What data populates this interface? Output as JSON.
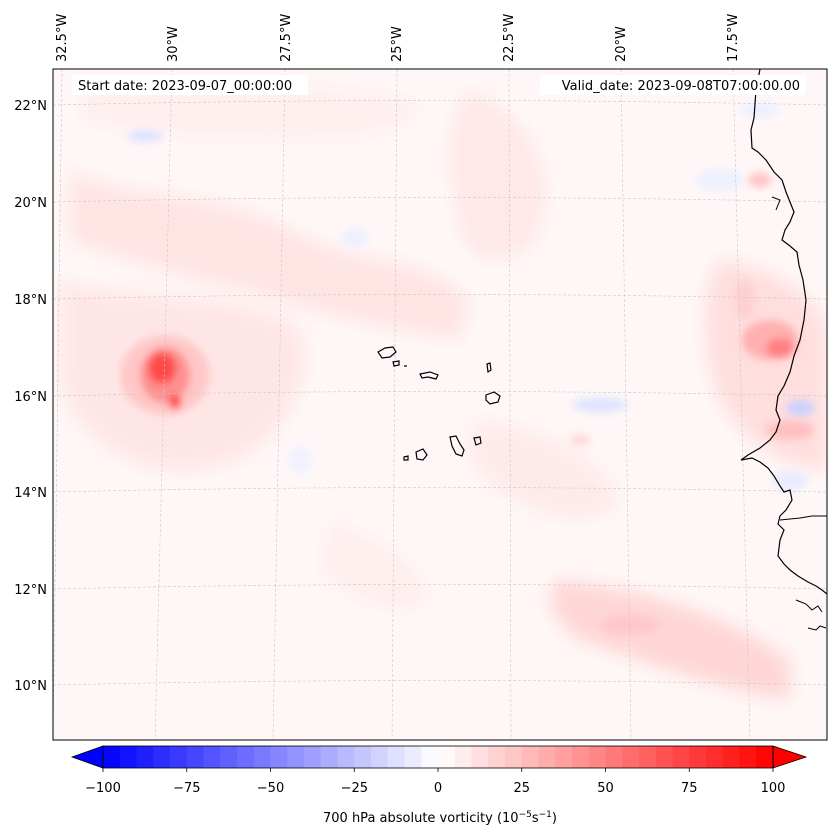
{
  "map": {
    "start_date": "Start date: 2023-09-07_00:00:00",
    "valid_date": "Valid_date: 2023-09-08T07:00:00.00",
    "lon_labels": [
      "32.5°W",
      "30°W",
      "27.5°W",
      "25°W",
      "22.5°W",
      "20°W",
      "17.5°W"
    ],
    "lat_labels": [
      "22°N",
      "20°N",
      "18°N",
      "16°N",
      "14°N",
      "12°N",
      "10°N"
    ],
    "field": "700 hPa absolute vorticity",
    "colors": {
      "positive_max": "#ff0000",
      "negative_max": "#0000ff",
      "neutral": "#ffffff",
      "coastline": "#000000"
    }
  },
  "colorbar": {
    "title": "700 hPa absolute vorticity",
    "unit_prefix": "(10",
    "unit_exp1": "−5",
    "unit_mid": "s",
    "unit_exp2": "−1",
    "unit_suffix": ")",
    "ticks": [
      "−100",
      "−75",
      "−50",
      "−25",
      "0",
      "25",
      "50",
      "75",
      "100"
    ],
    "min": -100,
    "max": 100,
    "levels": 40
  }
}
